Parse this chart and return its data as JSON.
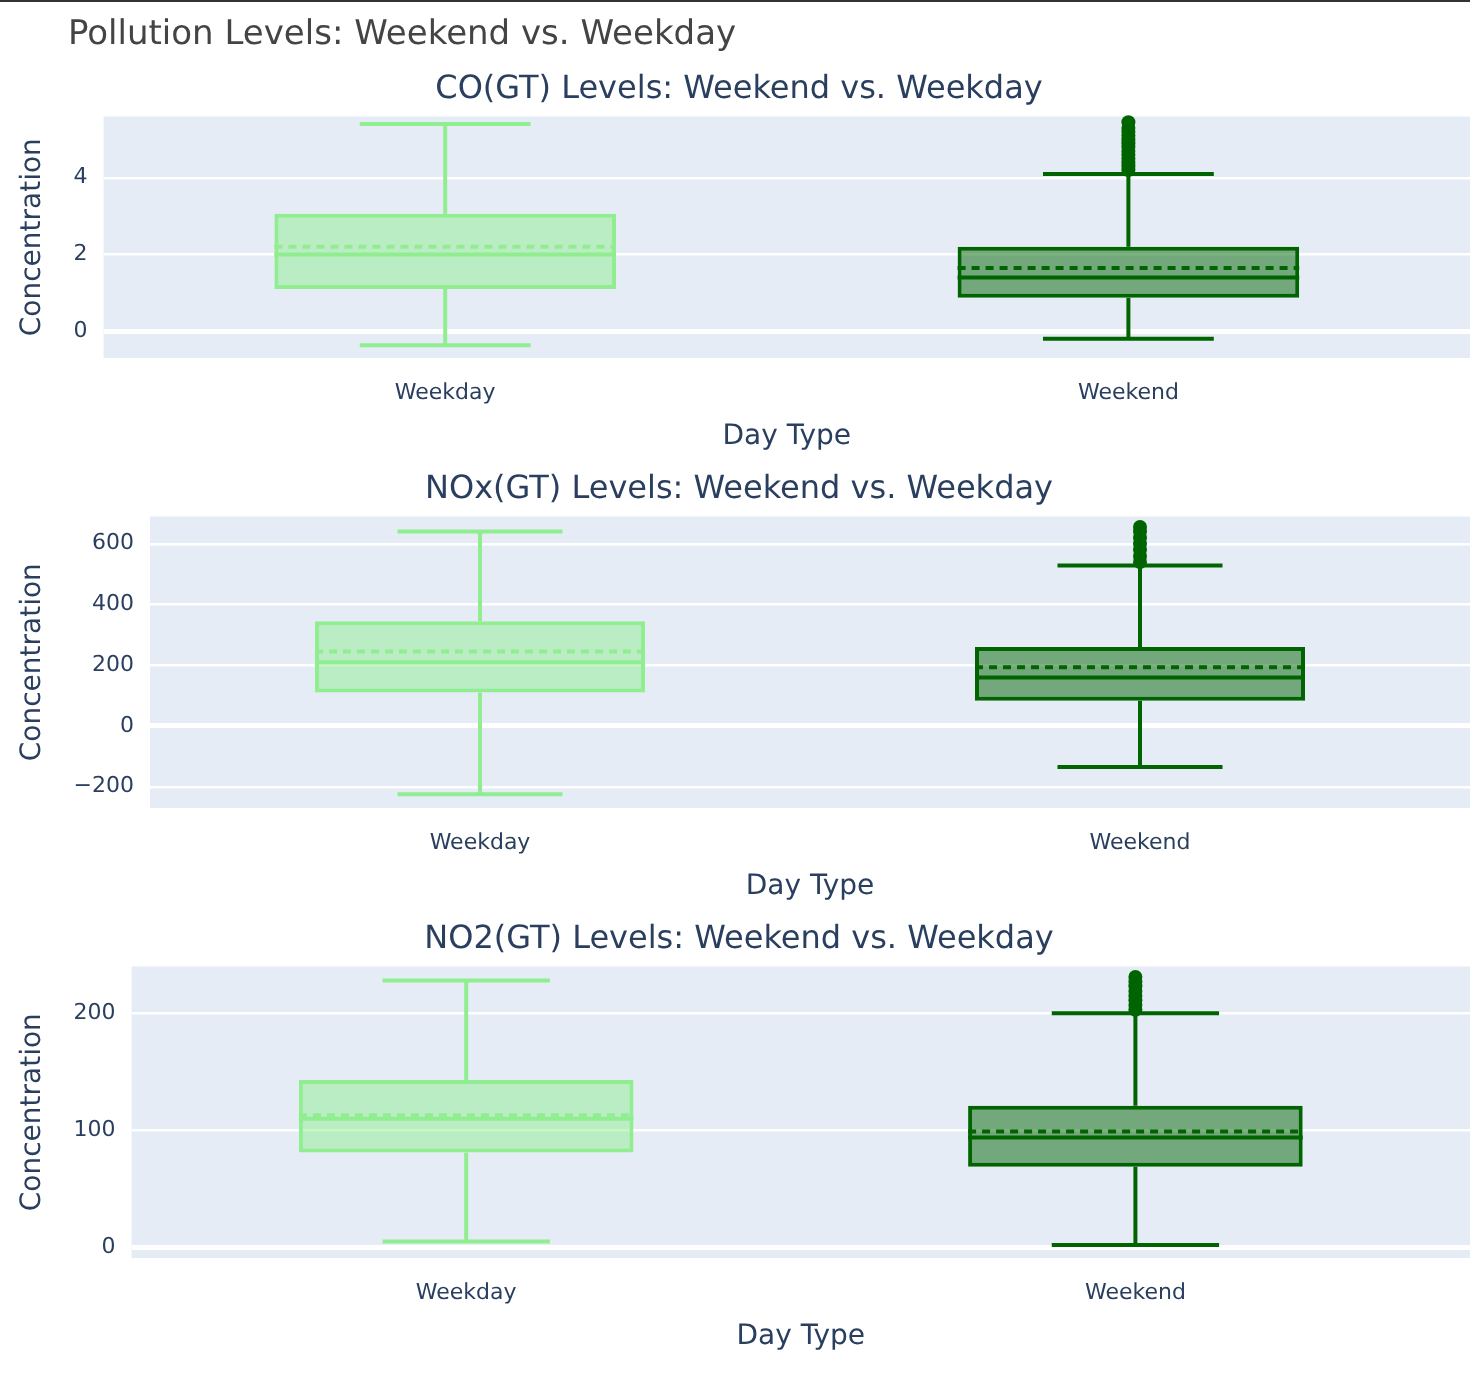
{
  "chart_data": [
    {
      "type": "box",
      "title": "Pollution Levels: Weekend vs. Weekday",
      "subtitle": "CO(GT) Levels: Weekend vs. Weekday",
      "xlabel": "Day Type",
      "ylabel": "Concentration",
      "categories": [
        "Weekday",
        "Weekend"
      ],
      "colors": [
        "#90ee90",
        "#006400"
      ],
      "ylim": [
        -0.7,
        5.6
      ],
      "yticks": [
        0,
        2,
        4
      ],
      "grid": "y",
      "legend": false,
      "boxes": [
        {
          "low": -0.37,
          "q1": 1.1,
          "median": 2.0,
          "q3": 3.06,
          "high": 5.4,
          "mean": 2.2
        },
        {
          "low": -0.2,
          "q1": 0.87,
          "median": 1.4,
          "q3": 2.2,
          "high": 4.1,
          "mean": 1.65,
          "outliers": [
            4.2,
            4.3,
            4.4,
            4.5,
            4.6,
            4.7,
            4.8,
            4.9,
            5.0,
            5.1,
            5.2,
            5.3,
            5.45
          ]
        }
      ]
    },
    {
      "type": "box",
      "title": "NOx(GT) Levels: Weekend vs. Weekday",
      "xlabel": "Day Type",
      "ylabel": "Concentration",
      "categories": [
        "Weekday",
        "Weekend"
      ],
      "colors": [
        "#90ee90",
        "#006400"
      ],
      "ylim": [
        -270,
        690
      ],
      "yticks": [
        -200,
        0,
        200,
        400,
        600
      ],
      "grid": "y",
      "legend": false,
      "boxes": [
        {
          "low": -225,
          "q1": 110,
          "median": 210,
          "q3": 345,
          "high": 640,
          "mean": 245
        },
        {
          "low": -135,
          "q1": 83,
          "median": 160,
          "q3": 260,
          "high": 528,
          "mean": 193,
          "outliers": [
            540,
            560,
            580,
            600,
            620,
            640,
            655
          ]
        }
      ]
    },
    {
      "type": "box",
      "title": "NO2(GT) Levels: Weekend vs. Weekday",
      "xlabel": "Day Type",
      "ylabel": "Concentration",
      "categories": [
        "Weekday",
        "Weekend"
      ],
      "colors": [
        "#90ee90",
        "#006400"
      ],
      "ylim": [
        -9,
        240
      ],
      "yticks": [
        0,
        100,
        200
      ],
      "grid": "y",
      "legend": false,
      "boxes": [
        {
          "low": 5,
          "q1": 81,
          "median": 110,
          "q3": 143,
          "high": 228,
          "mean": 113
        },
        {
          "low": 2,
          "q1": 69,
          "median": 94,
          "q3": 121,
          "high": 200,
          "mean": 99,
          "outliers": [
            203,
            207,
            211,
            215,
            219,
            223,
            227,
            231
          ]
        }
      ]
    }
  ]
}
